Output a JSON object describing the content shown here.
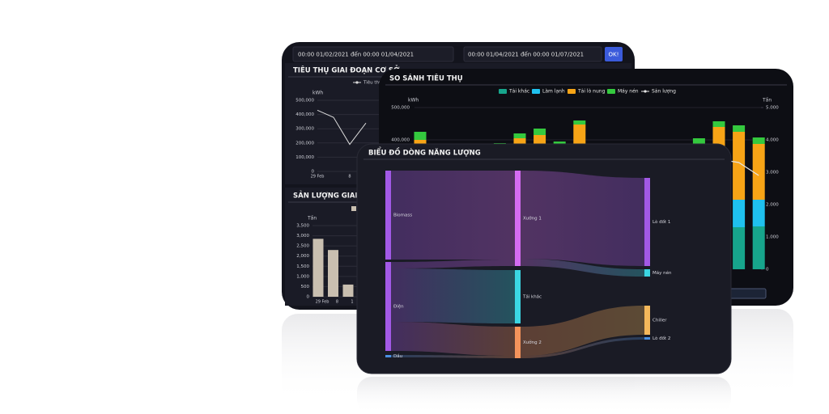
{
  "ui": {
    "date_range_1": "00:00 01/02/2021 đến 00:00 01/04/2021",
    "date_range_2": "00:00 01/04/2021 đến 00:00 01/07/2021",
    "ok_button": "OK!"
  },
  "chart_data": [
    {
      "type": "line",
      "title": "TIÊU THỤ GIAI ĐOẠN CƠ SỞ",
      "y_label": "kWh",
      "categories": [
        "29 Feb",
        null,
        "8",
        null
      ],
      "series": [
        {
          "name": "Tiêu thụ",
          "color": "#d9d9d9",
          "values": [
            430000,
            380000,
            190000,
            340000
          ]
        }
      ],
      "ylim": [
        0,
        500000
      ],
      "yticks": [
        0,
        {
          "value": 100000,
          "label": "100,000"
        },
        {
          "value": 200000,
          "label": "200,000"
        },
        {
          "value": 300000,
          "label": "300,000"
        },
        {
          "value": 400000,
          "label": "400,000"
        },
        {
          "value": 500000,
          "label": "500,000"
        }
      ],
      "grid": true
    },
    {
      "type": "bar",
      "title": "SẢN LƯỢNG GIAI ĐOẠN CƠ SỞ",
      "y_label": "Tấn",
      "categories": [
        "29 Feb",
        "8",
        "1"
      ],
      "values": [
        2850,
        2300,
        600
      ],
      "color": "#c9bfb0",
      "ylim": [
        0,
        3500
      ],
      "yticks": [
        0,
        500,
        {
          "value": 1000,
          "label": "1,000"
        },
        {
          "value": 1500,
          "label": "1,500"
        },
        {
          "value": 2000,
          "label": "2,000"
        },
        {
          "value": 2500,
          "label": "2,500"
        },
        {
          "value": 3000,
          "label": "3,000"
        },
        {
          "value": 3500,
          "label": "3,500"
        }
      ],
      "grid": true
    },
    {
      "type": "stacked_bar",
      "title": "SO SÁNH TIÊU THỤ",
      "y_label": "kWh",
      "y2_label": "Tấn",
      "categories": [
        null,
        null,
        null,
        null,
        null,
        null,
        null,
        null,
        null,
        null,
        null,
        null,
        null,
        null,
        null,
        null,
        null,
        null
      ],
      "series": [
        {
          "name": "Tải khác",
          "color": "#17a58c",
          "values": [
            130000,
            null,
            null,
            null,
            130000,
            130000,
            130000,
            130000,
            130000,
            null,
            null,
            null,
            null,
            null,
            130000,
            127500,
            130000,
            132500
          ]
        },
        {
          "name": "Làm lạnh",
          "color": "#1fc1ef",
          "values": [
            85000,
            null,
            null,
            null,
            85000,
            85000,
            85000,
            85000,
            85000,
            null,
            null,
            null,
            null,
            null,
            85000,
            85000,
            85000,
            82500
          ]
        },
        {
          "name": "Tải lò nung",
          "color": "#f7a416",
          "values": [
            185000,
            null,
            null,
            null,
            170000,
            190000,
            200000,
            172500,
            232500,
            null,
            null,
            null,
            null,
            null,
            172500,
            227500,
            210000,
            172500
          ]
        },
        {
          "name": "Máy nén",
          "color": "#34c93e",
          "values": [
            25000,
            null,
            null,
            null,
            5000,
            15000,
            20000,
            7500,
            12500,
            null,
            null,
            null,
            null,
            null,
            17500,
            17500,
            20000,
            20000
          ]
        },
        {
          "name": "Sản lượng",
          "color": "#e6e6e6",
          "axis": "y2",
          "line": true,
          "values": [
            null,
            null,
            null,
            null,
            null,
            null,
            null,
            null,
            null,
            null,
            null,
            null,
            null,
            null,
            null,
            3400,
            3300,
            2900
          ]
        }
      ],
      "ylim": [
        0,
        500000
      ],
      "yticks": [
        {
          "value": 400000,
          "label": "400,000"
        },
        {
          "value": 500000,
          "label": "500,000"
        }
      ],
      "y2lim": [
        0,
        5000
      ],
      "y2ticks": [
        0,
        {
          "value": 1000,
          "label": "1.000"
        },
        {
          "value": 2000,
          "label": "2.000"
        },
        {
          "value": 3000,
          "label": "3.000"
        },
        {
          "value": 4000,
          "label": "4.000"
        },
        {
          "value": 5000,
          "label": "5.000"
        }
      ],
      "grid": true
    },
    {
      "type": "sankey",
      "title": "BIỂU ĐỒ DÒNG NĂNG LƯỢNG",
      "nodes": [
        {
          "name": "Biomass",
          "color": "#a259e6"
        },
        {
          "name": "Điện",
          "color": "#a259e6"
        },
        {
          "name": "Dầu",
          "color": "#4a90e2"
        },
        {
          "name": "Xưởng 1",
          "color": "#d46cf2"
        },
        {
          "name": "Tải khác",
          "color": "#3bd6e3"
        },
        {
          "name": "Xưởng 2",
          "color": "#f5935b"
        },
        {
          "name": "Lò đốt 1",
          "color": "#a259e6"
        },
        {
          "name": "Máy nén",
          "color": "#3bd6e3"
        },
        {
          "name": "Chiller",
          "color": "#f5b85b"
        },
        {
          "name": "Lò đốt 2",
          "color": "#4a90e2"
        }
      ],
      "links": [
        {
          "source": 0,
          "target": 3,
          "value": 110
        },
        {
          "source": 1,
          "target": 3,
          "value": 8
        },
        {
          "source": 1,
          "target": 4,
          "value": 66
        },
        {
          "source": 1,
          "target": 5,
          "value": 36
        },
        {
          "source": 2,
          "target": 5,
          "value": 3
        },
        {
          "source": 3,
          "target": 6,
          "value": 109
        },
        {
          "source": 3,
          "target": 7,
          "value": 9
        },
        {
          "source": 5,
          "target": 8,
          "value": 36
        },
        {
          "source": 5,
          "target": 9,
          "value": 3
        }
      ]
    }
  ]
}
